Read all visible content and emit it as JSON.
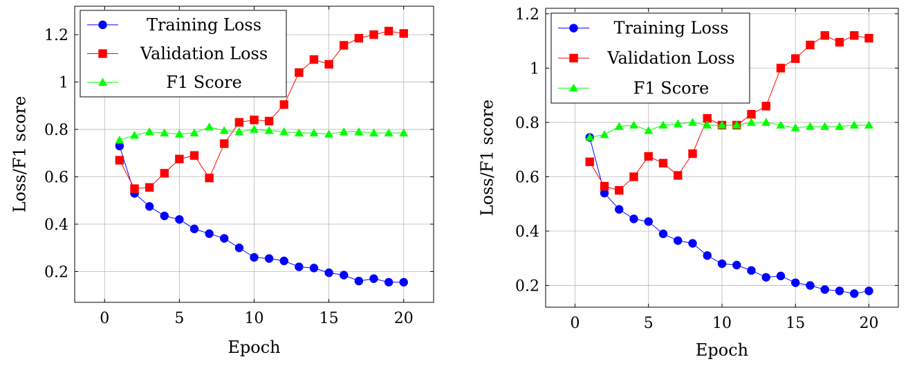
{
  "chart_data": [
    {
      "type": "line",
      "xlabel": "Epoch",
      "ylabel": "Loss/F1 score",
      "xlim": [
        -2,
        22
      ],
      "ylim": [
        0.07,
        1.32
      ],
      "xticks": [
        0,
        5,
        10,
        15,
        20
      ],
      "xtick_labels": [
        "0",
        "5",
        "10",
        "15",
        "20"
      ],
      "yticks": [
        0.2,
        0.4,
        0.6,
        0.8,
        1.0,
        1.2
      ],
      "ytick_labels": [
        "0.2",
        "0.4",
        "0.6",
        "0.8",
        "1",
        "1.2"
      ],
      "grid": true,
      "legend_position": "top-left",
      "x": [
        1,
        2,
        3,
        4,
        5,
        6,
        7,
        8,
        9,
        10,
        11,
        12,
        13,
        14,
        15,
        16,
        17,
        18,
        19,
        20
      ],
      "series": [
        {
          "name": "Training Loss",
          "color": "#0000ff",
          "marker": "circle",
          "values": [
            0.73,
            0.53,
            0.475,
            0.435,
            0.42,
            0.38,
            0.36,
            0.34,
            0.3,
            0.26,
            0.255,
            0.245,
            0.22,
            0.215,
            0.195,
            0.185,
            0.16,
            0.17,
            0.155,
            0.155
          ]
        },
        {
          "name": "Validation Loss",
          "color": "#ff0000",
          "marker": "square",
          "values": [
            0.67,
            0.55,
            0.555,
            0.615,
            0.675,
            0.69,
            0.595,
            0.74,
            0.83,
            0.84,
            0.835,
            0.905,
            1.04,
            1.095,
            1.075,
            1.155,
            1.185,
            1.2,
            1.215,
            1.205
          ]
        },
        {
          "name": "F1 Score",
          "color": "#00ff00",
          "marker": "triangle",
          "values": [
            0.755,
            0.775,
            0.79,
            0.785,
            0.78,
            0.785,
            0.81,
            0.795,
            0.79,
            0.8,
            0.795,
            0.79,
            0.785,
            0.785,
            0.78,
            0.79,
            0.79,
            0.785,
            0.785,
            0.785
          ]
        }
      ]
    },
    {
      "type": "line",
      "xlabel": "Epoch",
      "ylabel": "Loss/F1 score",
      "xlim": [
        -2,
        22
      ],
      "ylim": [
        0.12,
        1.22
      ],
      "xticks": [
        0,
        5,
        10,
        15,
        20
      ],
      "xtick_labels": [
        "0",
        "5",
        "10",
        "15",
        "20"
      ],
      "yticks": [
        0.2,
        0.4,
        0.6,
        0.8,
        1.0,
        1.2
      ],
      "ytick_labels": [
        "0.2",
        "0.4",
        "0.6",
        "0.8",
        "1",
        "1.2"
      ],
      "grid": true,
      "legend_position": "top-left",
      "x": [
        1,
        2,
        3,
        4,
        5,
        6,
        7,
        8,
        9,
        10,
        11,
        12,
        13,
        14,
        15,
        16,
        17,
        18,
        19,
        20
      ],
      "series": [
        {
          "name": "Training Loss",
          "color": "#0000ff",
          "marker": "circle",
          "values": [
            0.745,
            0.54,
            0.48,
            0.445,
            0.435,
            0.39,
            0.365,
            0.355,
            0.31,
            0.28,
            0.275,
            0.255,
            0.23,
            0.235,
            0.21,
            0.2,
            0.185,
            0.18,
            0.17,
            0.18
          ]
        },
        {
          "name": "Validation Loss",
          "color": "#ff0000",
          "marker": "square",
          "values": [
            0.655,
            0.565,
            0.55,
            0.6,
            0.675,
            0.65,
            0.605,
            0.685,
            0.815,
            0.79,
            0.79,
            0.83,
            0.86,
            1.0,
            1.035,
            1.085,
            1.12,
            1.095,
            1.12,
            1.11
          ]
        },
        {
          "name": "F1 Score",
          "color": "#00ff00",
          "marker": "triangle",
          "values": [
            0.745,
            0.755,
            0.785,
            0.79,
            0.77,
            0.79,
            0.795,
            0.8,
            0.79,
            0.79,
            0.79,
            0.8,
            0.8,
            0.79,
            0.78,
            0.785,
            0.785,
            0.785,
            0.79,
            0.79
          ]
        }
      ]
    }
  ]
}
